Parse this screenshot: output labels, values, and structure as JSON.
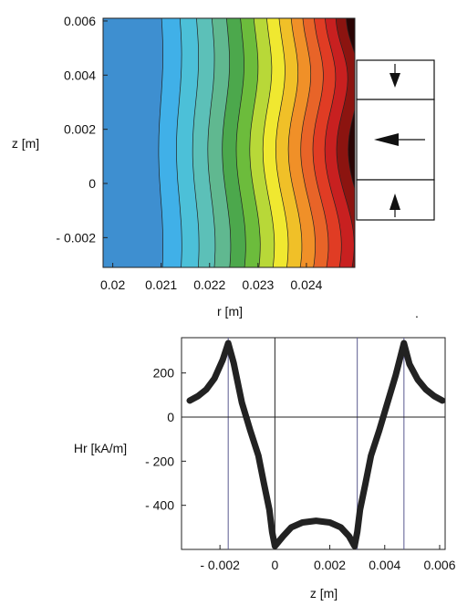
{
  "chart_data": [
    {
      "type": "heatmap",
      "xlabel": "r [m]",
      "ylabel": "z [m]",
      "xlim": [
        0.0198,
        0.025
      ],
      "ylim": [
        -0.0031,
        0.0061
      ],
      "x_ticks": [
        "0.02",
        "0.021",
        "0.022",
        "0.023",
        "0.024"
      ],
      "x_tick_values": [
        0.02,
        0.021,
        0.022,
        0.023,
        0.024
      ],
      "y_ticks": [
        "0.006",
        "0.004",
        "0.002",
        "0",
        "- 0.002"
      ],
      "y_tick_values": [
        0.006,
        0.004,
        0.002,
        0,
        -0.002
      ],
      "magnet_blocks": [
        {
          "z_range": [
            0.0043,
            0.0061
          ],
          "arrow": "down"
        },
        {
          "z_range": [
            0.0013,
            0.0043
          ],
          "arrow": "left"
        },
        {
          "z_range": [
            -0.0012,
            0.0013
          ],
          "arrow": "up"
        }
      ],
      "colors": [
        "#3e8fd0",
        "#40b0e8",
        "#4cc0d8",
        "#5cc0b8",
        "#60b890",
        "#4ca84c",
        "#6cbc3c",
        "#b8d838",
        "#f0e830",
        "#f0c028",
        "#f09028",
        "#e86428",
        "#e03c24",
        "#c82020",
        "#8c1410",
        "#2a0404"
      ],
      "note_mark": "."
    },
    {
      "type": "line",
      "xlabel": "z [m]",
      "ylabel": "Hr [kA/m]",
      "xlim": [
        -0.0034,
        0.0062
      ],
      "ylim": [
        -600,
        360
      ],
      "x_ticks": [
        "- 0.002",
        "0",
        "0.002",
        "0.004",
        "0.006"
      ],
      "x_tick_values": [
        -0.002,
        0,
        0.002,
        0.004,
        0.006
      ],
      "y_ticks": [
        "200",
        "0",
        "- 200",
        "- 400"
      ],
      "y_tick_values": [
        200,
        0,
        -200,
        -400
      ],
      "vertical_lines": [
        -0.0017,
        0,
        0.003,
        0.0047
      ],
      "series": [
        {
          "x": [
            -0.0031,
            -0.0028,
            -0.0025,
            -0.0022,
            -0.0019,
            -0.0017,
            -0.0015,
            -0.0012,
            -0.0009,
            -0.0006,
            -0.0004,
            -0.0002,
            -0.0001,
            0,
            0.0003,
            0.0006,
            0.001,
            0.0015,
            0.002,
            0.0024,
            0.0027,
            0.0029,
            0.003,
            0.0031,
            0.0033,
            0.0035,
            0.0038,
            0.0041,
            0.0044,
            0.0047,
            0.0049,
            0.0052,
            0.0055,
            0.0058,
            0.0061
          ],
          "y": [
            75,
            95,
            125,
            175,
            260,
            335,
            245,
            65,
            -60,
            -175,
            -300,
            -420,
            -520,
            -585,
            -540,
            -500,
            -478,
            -470,
            -478,
            -500,
            -540,
            -585,
            -520,
            -420,
            -300,
            -175,
            -60,
            65,
            190,
            335,
            240,
            170,
            125,
            95,
            75
          ]
        }
      ]
    }
  ]
}
